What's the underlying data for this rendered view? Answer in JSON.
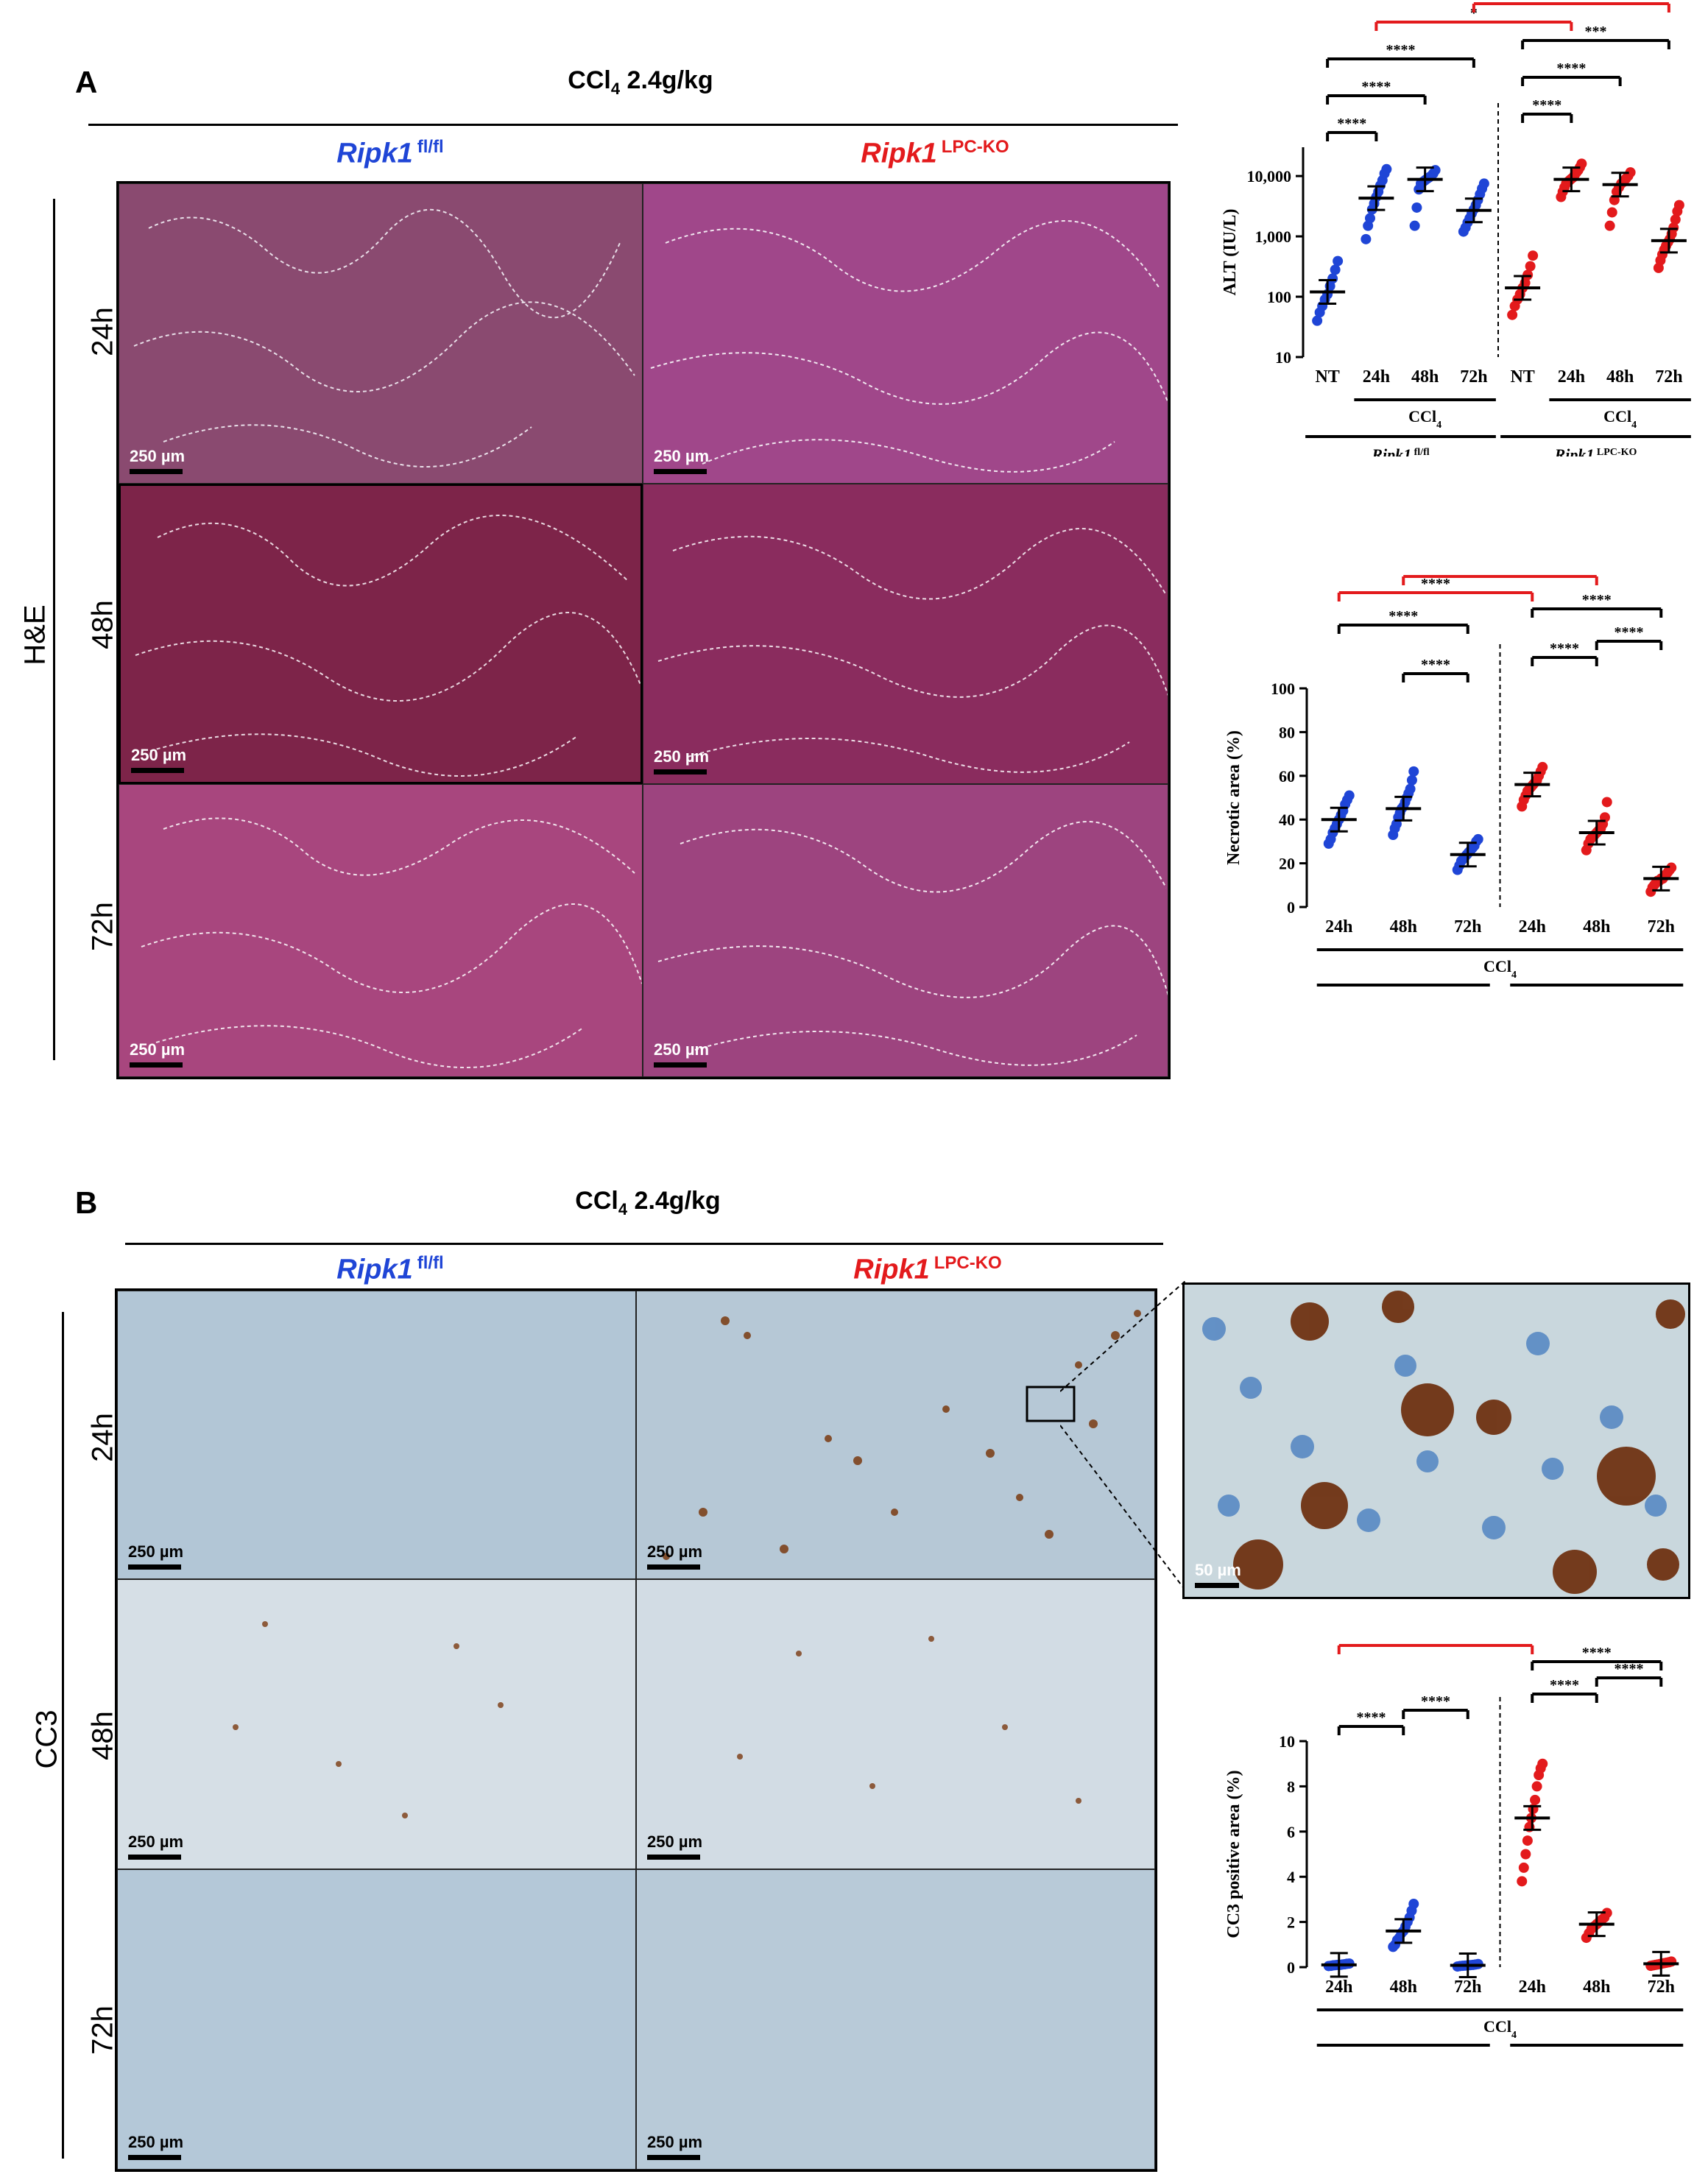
{
  "panel_a": {
    "letter": "A",
    "treatment": "CCl",
    "treatment_sub": "4",
    "treatment_dose": " 2.4g/kg",
    "assay_label": "H&E",
    "columns": [
      {
        "gene": "Ripk1",
        "sup": "fl/fl",
        "color": "#1f45d6"
      },
      {
        "gene": "Ripk1",
        "sup": "LPC-KO",
        "color": "#e31a1c"
      }
    ],
    "rows": [
      "24h",
      "48h",
      "72h"
    ],
    "scale_bar": "250 µm"
  },
  "panel_b": {
    "letter": "B",
    "treatment": "CCl",
    "treatment_sub": "4",
    "treatment_dose": " 2.4g/kg",
    "assay_label": "CC3",
    "columns": [
      {
        "gene": "Ripk1",
        "sup": "fl/fl",
        "color": "#1f45d6"
      },
      {
        "gene": "Ripk1",
        "sup": "LPC-KO",
        "color": "#e31a1c"
      }
    ],
    "rows": [
      "24h",
      "48h",
      "72h"
    ],
    "scale_bar": "250 µm",
    "inset_scale_bar": "50 µm"
  },
  "colors": {
    "flfl": "#1f45d6",
    "ko": "#e31a1c"
  },
  "chart_data": [
    {
      "type": "scatter",
      "ylabel": "ALT (IU/L)",
      "yscale": "log",
      "ylim": [
        10,
        30000
      ],
      "yticks": [
        "10",
        "100",
        "1,000",
        "10,000"
      ],
      "categories": [
        "NT",
        "24h",
        "48h",
        "72h",
        "NT",
        "24h",
        "48h",
        "72h"
      ],
      "treatment_label": "CCl",
      "treatment_sub": "4",
      "groups": [
        {
          "name": "Ripk1",
          "sup": "fl/fl"
        },
        {
          "name": "Ripk1",
          "sup": "LPC-KO"
        }
      ],
      "series": [
        {
          "group": 0,
          "cat": 0,
          "mean": 120,
          "color": "#1f45d6",
          "points": [
            40,
            55,
            70,
            90,
            110,
            150,
            200,
            280,
            390
          ]
        },
        {
          "group": 0,
          "cat": 1,
          "mean": 4300,
          "color": "#1f45d6",
          "points": [
            900,
            1500,
            2000,
            2800,
            3500,
            4500,
            5500,
            7000,
            8500,
            11000,
            13000
          ]
        },
        {
          "group": 0,
          "cat": 2,
          "mean": 8800,
          "color": "#1f45d6",
          "points": [
            1500,
            3000,
            6000,
            7500,
            8000,
            8500,
            9000,
            9500,
            10000,
            11000,
            12500
          ]
        },
        {
          "group": 0,
          "cat": 3,
          "mean": 2700,
          "color": "#1f45d6",
          "points": [
            1200,
            1400,
            1700,
            2000,
            2400,
            2800,
            3300,
            4000,
            5000,
            6200,
            7500
          ]
        },
        {
          "group": 1,
          "cat": 4,
          "mean": 140,
          "color": "#e31a1c",
          "points": [
            50,
            70,
            90,
            110,
            140,
            170,
            230,
            320,
            480
          ]
        },
        {
          "group": 1,
          "cat": 5,
          "mean": 8800,
          "color": "#e31a1c",
          "points": [
            4500,
            5500,
            6500,
            7500,
            8000,
            8500,
            9000,
            9500,
            10500,
            11500,
            12500,
            14000,
            16000
          ]
        },
        {
          "group": 1,
          "cat": 6,
          "mean": 7200,
          "color": "#e31a1c",
          "points": [
            1500,
            2500,
            4000,
            5500,
            6500,
            7500,
            8000,
            9000,
            10000,
            11500
          ]
        },
        {
          "group": 1,
          "cat": 7,
          "mean": 850,
          "color": "#e31a1c",
          "points": [
            300,
            400,
            500,
            600,
            700,
            800,
            900,
            1100,
            1400,
            1900,
            2600,
            3300
          ]
        }
      ],
      "comparisons": [
        {
          "from": 0,
          "to": 1,
          "label": "****",
          "color": "#000"
        },
        {
          "from": 0,
          "to": 2,
          "label": "****",
          "color": "#000"
        },
        {
          "from": 0,
          "to": 3,
          "label": "****",
          "color": "#000"
        },
        {
          "from": 4,
          "to": 5,
          "label": "****",
          "color": "#000"
        },
        {
          "from": 4,
          "to": 6,
          "label": "****",
          "color": "#000"
        },
        {
          "from": 4,
          "to": 7,
          "label": "***",
          "color": "#000"
        },
        {
          "from": 1,
          "to": 5,
          "label": "*",
          "color": "#e31a1c"
        },
        {
          "from": 3,
          "to": 7,
          "label": "***",
          "color": "#e31a1c"
        }
      ]
    },
    {
      "type": "scatter",
      "ylabel": "Necrotic area (%)",
      "ylim": [
        0,
        100
      ],
      "yticks": [
        "0",
        "20",
        "40",
        "60",
        "80",
        "100"
      ],
      "categories": [
        "24h",
        "48h",
        "72h",
        "24h",
        "48h",
        "72h"
      ],
      "treatment_label": "CCl",
      "treatment_sub": "4",
      "groups": [
        {
          "name": "Ripk1",
          "sup": "fl/fl"
        },
        {
          "name": "Ripk1",
          "sup": "LPC-KO"
        }
      ],
      "series": [
        {
          "group": 0,
          "cat": 0,
          "mean": 40,
          "color": "#1f45d6",
          "points": [
            29,
            31,
            34,
            36,
            38,
            40,
            42,
            44,
            47,
            49,
            51
          ]
        },
        {
          "group": 0,
          "cat": 1,
          "mean": 45,
          "color": "#1f45d6",
          "points": [
            33,
            36,
            38,
            41,
            43,
            45,
            46,
            48,
            50,
            52,
            54,
            58,
            62
          ]
        },
        {
          "group": 0,
          "cat": 2,
          "mean": 24,
          "color": "#1f45d6",
          "points": [
            17,
            19,
            21,
            22,
            23,
            24,
            25,
            26,
            27,
            28,
            30,
            31
          ]
        },
        {
          "group": 1,
          "cat": 3,
          "mean": 56,
          "color": "#e31a1c",
          "points": [
            46,
            49,
            51,
            53,
            54,
            55,
            56,
            57,
            58,
            60,
            62,
            64
          ]
        },
        {
          "group": 1,
          "cat": 4,
          "mean": 34,
          "color": "#e31a1c",
          "points": [
            26,
            29,
            31,
            32,
            33,
            34,
            35,
            36,
            38,
            41,
            48
          ]
        },
        {
          "group": 1,
          "cat": 5,
          "mean": 13,
          "color": "#e31a1c",
          "points": [
            7,
            9,
            10,
            11,
            12,
            12,
            13,
            13,
            14,
            15,
            16,
            17,
            18
          ]
        }
      ],
      "comparisons": [
        {
          "from": 0,
          "to": 2,
          "label": "****",
          "color": "#000"
        },
        {
          "from": 1,
          "to": 2,
          "label": "****",
          "color": "#000"
        },
        {
          "from": 3,
          "to": 4,
          "label": "****",
          "color": "#000"
        },
        {
          "from": 3,
          "to": 5,
          "label": "****",
          "color": "#000"
        },
        {
          "from": 4,
          "to": 5,
          "label": "****",
          "color": "#000"
        },
        {
          "from": 0,
          "to": 3,
          "label": "****",
          "color": "#e31a1c"
        },
        {
          "from": 1,
          "to": 4,
          "label": "**",
          "color": "#e31a1c"
        },
        {
          "from": 2,
          "to": 5,
          "label": "****",
          "color": "#e31a1c"
        }
      ]
    },
    {
      "type": "scatter",
      "ylabel": "CC3 positive area (%)",
      "ylim": [
        0,
        10
      ],
      "yticks": [
        "0",
        "2",
        "4",
        "6",
        "8",
        "10"
      ],
      "categories": [
        "24h",
        "48h",
        "72h",
        "24h",
        "48h",
        "72h"
      ],
      "treatment_label": "CCl",
      "treatment_sub": "4",
      "groups": [
        {
          "name": "Ripk1",
          "sup": "fl/fl"
        },
        {
          "name": "Ripk1",
          "sup": "LPC-KO"
        }
      ],
      "series": [
        {
          "group": 0,
          "cat": 0,
          "mean": 0.1,
          "color": "#1f45d6",
          "points": [
            0.05,
            0.06,
            0.08,
            0.09,
            0.1,
            0.1,
            0.12,
            0.13,
            0.15,
            0.16
          ]
        },
        {
          "group": 0,
          "cat": 1,
          "mean": 1.6,
          "color": "#1f45d6",
          "points": [
            0.9,
            1.0,
            1.2,
            1.3,
            1.5,
            1.6,
            1.8,
            2.0,
            2.2,
            2.5,
            2.8
          ]
        },
        {
          "group": 0,
          "cat": 2,
          "mean": 0.08,
          "color": "#1f45d6",
          "points": [
            0.03,
            0.05,
            0.06,
            0.07,
            0.08,
            0.09,
            0.1,
            0.12,
            0.14
          ]
        },
        {
          "group": 1,
          "cat": 3,
          "mean": 6.6,
          "color": "#e31a1c",
          "points": [
            3.8,
            4.4,
            5.0,
            5.6,
            6.2,
            6.6,
            7.0,
            7.4,
            8.0,
            8.5,
            8.8,
            9.0
          ]
        },
        {
          "group": 1,
          "cat": 4,
          "mean": 1.9,
          "color": "#e31a1c",
          "points": [
            1.3,
            1.5,
            1.7,
            1.8,
            1.9,
            2.0,
            2.1,
            2.2,
            2.4
          ]
        },
        {
          "group": 1,
          "cat": 5,
          "mean": 0.15,
          "color": "#e31a1c",
          "points": [
            0.06,
            0.08,
            0.1,
            0.12,
            0.14,
            0.16,
            0.18,
            0.2,
            0.22,
            0.25
          ]
        }
      ],
      "comparisons": [
        {
          "from": 0,
          "to": 1,
          "label": "****",
          "color": "#000"
        },
        {
          "from": 1,
          "to": 2,
          "label": "****",
          "color": "#000"
        },
        {
          "from": 3,
          "to": 4,
          "label": "****",
          "color": "#000"
        },
        {
          "from": 4,
          "to": 5,
          "label": "****",
          "color": "#000"
        },
        {
          "from": 3,
          "to": 5,
          "label": "****",
          "color": "#000"
        },
        {
          "from": 0,
          "to": 3,
          "label": "****",
          "color": "#e31a1c"
        },
        {
          "from": 2,
          "to": 5,
          "label": "*",
          "color": "#e31a1c"
        }
      ]
    }
  ]
}
